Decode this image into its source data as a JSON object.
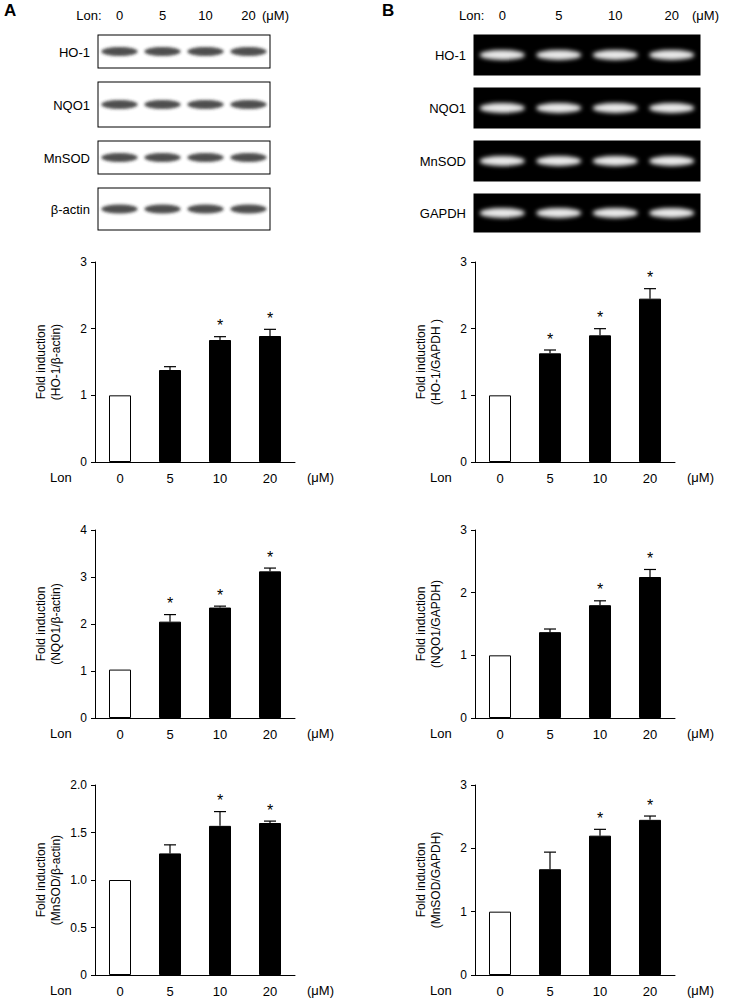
{
  "panels": [
    {
      "label": "A",
      "treatment": "Lon:",
      "doses": [
        "0",
        "5",
        "10",
        "20"
      ],
      "unit": "(μM)",
      "rows": [
        "HO-1",
        "NQO1",
        "MnSOD",
        "β-actin"
      ]
    },
    {
      "label": "B",
      "treatment": "Lon:",
      "doses": [
        "0",
        "5",
        "10",
        "20"
      ],
      "unit": "(μM)",
      "rows": [
        "HO-1",
        "NQO1",
        "MnSOD",
        "GAPDH"
      ]
    }
  ],
  "chart_data": [
    {
      "type": "bar",
      "categories": [
        "0",
        "5",
        "10",
        "20"
      ],
      "values": [
        1,
        1.38,
        1.83,
        1.89
      ],
      "errors": [
        null,
        0.05,
        0.05,
        0.1
      ],
      "colors": [
        "#ffffff",
        "#000000",
        "#000000",
        "#000000"
      ],
      "ylabel": "Fold induction\n(HO-1/β-actin)",
      "xlabel": "Lon",
      "xunit": "(μM)",
      "ylim": [
        0,
        3
      ],
      "yticks": [
        0,
        1,
        2,
        3
      ],
      "grid": false,
      "annotations": [
        {
          "category": "10",
          "text": "*"
        },
        {
          "category": "20",
          "text": "*"
        }
      ]
    },
    {
      "type": "bar",
      "categories": [
        "0",
        "5",
        "10",
        "20"
      ],
      "values": [
        1.03,
        2.05,
        2.35,
        3.12
      ],
      "errors": [
        null,
        0.15,
        0.03,
        0.07
      ],
      "colors": [
        "#ffffff",
        "#000000",
        "#000000",
        "#000000"
      ],
      "ylabel": "Fold induction\n(NQO1/β-actin)",
      "xlabel": "Lon",
      "xunit": "(μM)",
      "ylim": [
        0,
        4
      ],
      "yticks": [
        0,
        1,
        2,
        3,
        4
      ],
      "grid": false,
      "annotations": [
        {
          "category": "5",
          "text": "*"
        },
        {
          "category": "10",
          "text": "*"
        },
        {
          "category": "20",
          "text": "*"
        }
      ]
    },
    {
      "type": "bar",
      "categories": [
        "0",
        "5",
        "10",
        "20"
      ],
      "values": [
        1,
        1.28,
        1.57,
        1.6
      ],
      "errors": [
        null,
        0.09,
        0.15,
        0.02
      ],
      "colors": [
        "#ffffff",
        "#000000",
        "#000000",
        "#000000"
      ],
      "ylabel": "Fold induction\n(MnSOD/β-actin)",
      "xlabel": "Lon",
      "xunit": "(μM)",
      "ylim": [
        0,
        2
      ],
      "yticks": [
        0,
        0.5,
        {
          "value": 1,
          "label": "1.0"
        },
        1.5,
        {
          "value": 2,
          "label": "2.0"
        }
      ],
      "grid": false,
      "annotations": [
        {
          "category": "10",
          "text": "*"
        },
        {
          "category": "20",
          "text": "*"
        }
      ]
    },
    {
      "type": "bar",
      "categories": [
        "0",
        "5",
        "10",
        "20"
      ],
      "values": [
        1,
        1.63,
        1.9,
        2.45
      ],
      "errors": [
        null,
        0.05,
        0.1,
        0.15
      ],
      "colors": [
        "#ffffff",
        "#000000",
        "#000000",
        "#000000"
      ],
      "ylabel": "Fold induction\n(HO-1/GAPDH )",
      "xlabel": "Lon",
      "xunit": "(μM)",
      "ylim": [
        0,
        3
      ],
      "yticks": [
        0,
        1,
        2,
        3
      ],
      "grid": false,
      "annotations": [
        {
          "category": "5",
          "text": "*"
        },
        {
          "category": "10",
          "text": "*"
        },
        {
          "category": "20",
          "text": "*"
        }
      ]
    },
    {
      "type": "bar",
      "categories": [
        "0",
        "5",
        "10",
        "20"
      ],
      "values": [
        1,
        1.37,
        1.8,
        2.25
      ],
      "errors": [
        null,
        0.05,
        0.07,
        0.12
      ],
      "colors": [
        "#ffffff",
        "#000000",
        "#000000",
        "#000000"
      ],
      "ylabel": "Fold induction\n(NQO1/GAPDH)",
      "xlabel": "Lon",
      "xunit": "(μM)",
      "ylim": [
        0,
        3
      ],
      "yticks": [
        0,
        1,
        2,
        3
      ],
      "grid": false,
      "annotations": [
        {
          "category": "10",
          "text": "*"
        },
        {
          "category": "20",
          "text": "*"
        }
      ]
    },
    {
      "type": "bar",
      "categories": [
        "0",
        "5",
        "10",
        "20"
      ],
      "values": [
        1,
        1.67,
        2.2,
        2.45
      ],
      "errors": [
        null,
        0.27,
        0.1,
        0.06
      ],
      "colors": [
        "#ffffff",
        "#000000",
        "#000000",
        "#000000"
      ],
      "ylabel": "Fold induction\n(MnSOD/GAPDH)",
      "xlabel": "Lon",
      "xunit": "(μM)",
      "ylim": [
        0,
        3
      ],
      "yticks": [
        0,
        1,
        2,
        3
      ],
      "grid": false,
      "annotations": [
        {
          "category": "10",
          "text": "*"
        },
        {
          "category": "20",
          "text": "*"
        }
      ]
    }
  ]
}
